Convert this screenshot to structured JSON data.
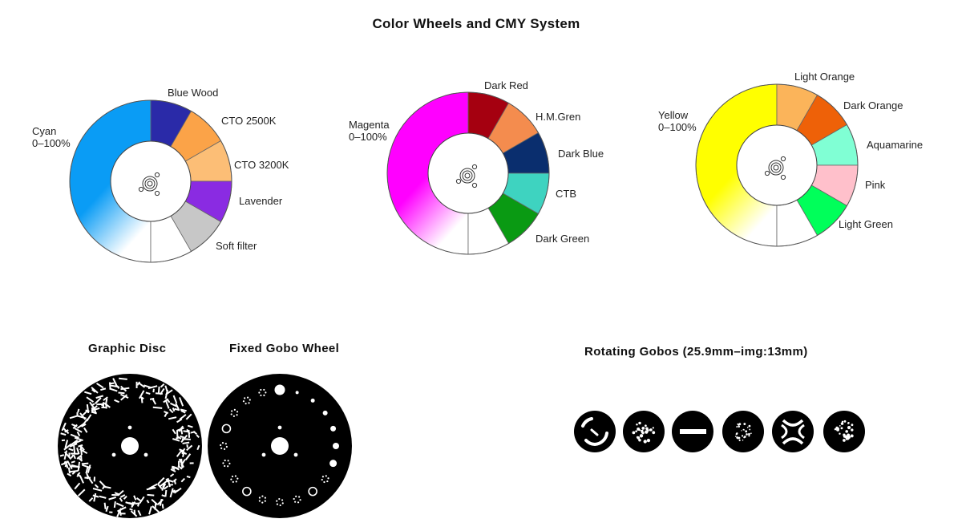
{
  "title": "Color Wheels and CMY System",
  "wheels": [
    {
      "dichroic": {
        "name": "Cyan",
        "range": "0–100%",
        "color": "#0a9cf5"
      },
      "filters": [
        {
          "name": "Blue Wood",
          "color": "#2a2aa8"
        },
        {
          "name": "CTO  2500K",
          "color": "#fba348"
        },
        {
          "name": "CTO  3200K",
          "color": "#fcbe76"
        },
        {
          "name": "Lavender",
          "color": "#8a2be2"
        },
        {
          "name": "Soft  filter",
          "color": "#c7c7c7"
        },
        {
          "name": "",
          "color": "#ffffff"
        }
      ]
    },
    {
      "dichroic": {
        "name": "Magenta",
        "range": "0–100%",
        "color": "#ff00ff"
      },
      "filters": [
        {
          "name": "Dark Red",
          "color": "#a50010"
        },
        {
          "name": "H.M.Gren",
          "color": "#f48c4e"
        },
        {
          "name": "Dark Blue",
          "color": "#0a2e6e"
        },
        {
          "name": "CTB",
          "color": "#3ed3c0"
        },
        {
          "name": "Dark Green",
          "color": "#0a9a13"
        },
        {
          "name": "",
          "color": "#ffffff"
        }
      ]
    },
    {
      "dichroic": {
        "name": "Yellow",
        "range": "0–100%",
        "color": "#ffff00"
      },
      "filters": [
        {
          "name": "Light Orange",
          "color": "#fbb45a"
        },
        {
          "name": "Dark Orange",
          "color": "#ee6108"
        },
        {
          "name": "Aquamarine",
          "color": "#80ffd4"
        },
        {
          "name": "Pink",
          "color": "#ffc0cb"
        },
        {
          "name": "Light Green",
          "color": "#00ff5a"
        },
        {
          "name": "",
          "color": "#ffffff"
        }
      ]
    }
  ],
  "discs": {
    "graphic": {
      "title": "Graphic Disc"
    },
    "fixed": {
      "title": "Fixed Gobo Wheel"
    }
  },
  "rotating": {
    "title": "Rotating Gobos (25.9mm–img:13mm)",
    "gobos": [
      "ring-arc-gobo",
      "cluster-gobo",
      "bar-gobo",
      "dots-gobo",
      "star-gobo",
      "scatter-gobo"
    ]
  }
}
